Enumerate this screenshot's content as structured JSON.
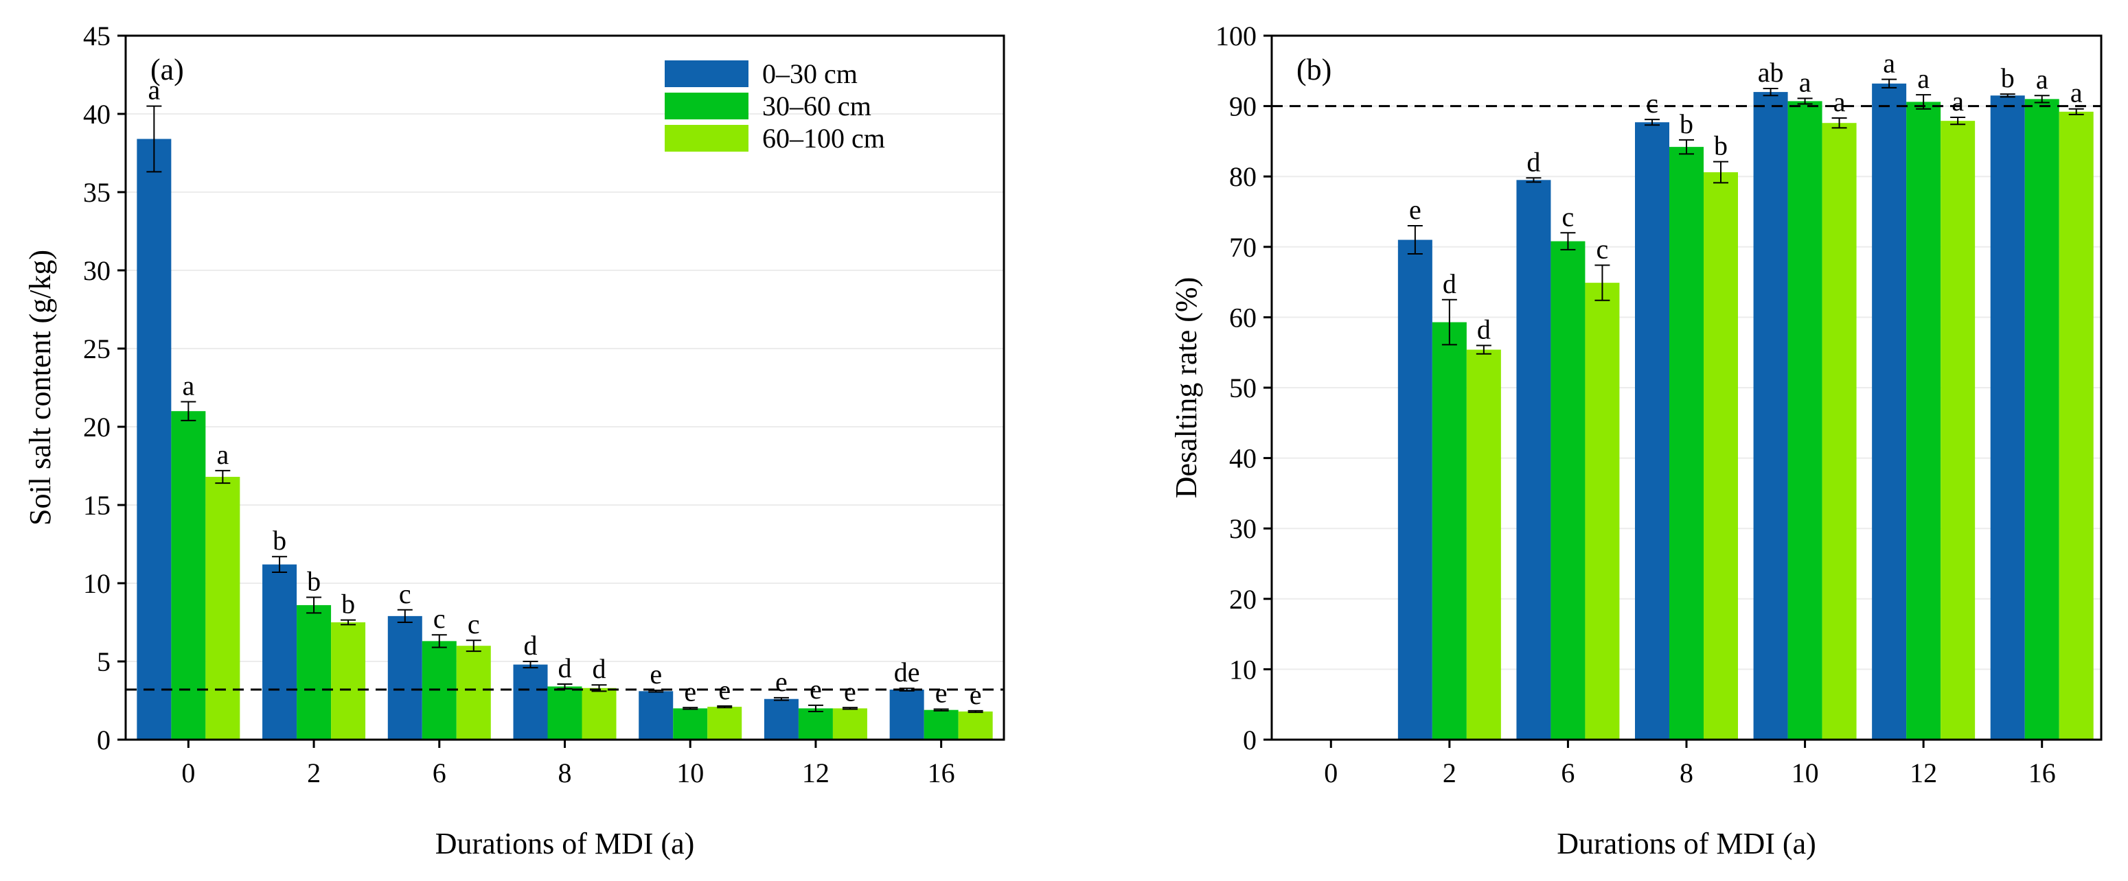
{
  "chart_data": [
    {
      "type": "bar",
      "panel_label": "(a)",
      "title": "",
      "xlabel": "Durations of MDI (a)",
      "ylabel": "Soil salt content (g/kg)",
      "ylim": [
        0,
        45
      ],
      "yticks": [
        0,
        5,
        10,
        15,
        20,
        25,
        30,
        35,
        40,
        45
      ],
      "grid": true,
      "legend_position": "top-right",
      "reference_line": 3.2,
      "categories": [
        "0",
        "2",
        "6",
        "8",
        "10",
        "12",
        "16"
      ],
      "series": [
        {
          "name": "0–30 cm",
          "color": "#0f62ad",
          "values": [
            38.4,
            11.2,
            7.9,
            4.8,
            3.1,
            2.6,
            3.2
          ],
          "errors": [
            2.1,
            0.5,
            0.4,
            0.2,
            0.05,
            0.08,
            0.08
          ],
          "letters": [
            "a",
            "b",
            "c",
            "d",
            "e",
            "e",
            "de"
          ]
        },
        {
          "name": "30–60 cm",
          "color": "#00c21c",
          "values": [
            21.0,
            8.6,
            6.3,
            3.4,
            2.0,
            2.0,
            1.9
          ],
          "errors": [
            0.6,
            0.5,
            0.4,
            0.15,
            0.05,
            0.2,
            0.05
          ],
          "letters": [
            "a",
            "b",
            "c",
            "d",
            "e",
            "e",
            "e"
          ]
        },
        {
          "name": "60–100 cm",
          "color": "#8ee800",
          "values": [
            16.8,
            7.5,
            6.0,
            3.3,
            2.1,
            2.0,
            1.8
          ],
          "errors": [
            0.4,
            0.15,
            0.35,
            0.2,
            0.05,
            0.05,
            0.05
          ],
          "letters": [
            "a",
            "b",
            "c",
            "d",
            "e",
            "e",
            "e"
          ]
        }
      ]
    },
    {
      "type": "bar",
      "panel_label": "(b)",
      "title": "",
      "xlabel": "Durations of MDI (a)",
      "ylabel": "Desalting rate (%)",
      "ylim": [
        0,
        100
      ],
      "yticks": [
        0,
        10,
        20,
        30,
        40,
        50,
        60,
        70,
        80,
        90,
        100
      ],
      "grid": true,
      "reference_line": 90,
      "categories": [
        "0",
        "2",
        "6",
        "8",
        "10",
        "12",
        "16"
      ],
      "series": [
        {
          "name": "0–30 cm",
          "color": "#0f62ad",
          "values": [
            null,
            71.0,
            79.5,
            87.7,
            92.0,
            93.2,
            91.5
          ],
          "errors": [
            null,
            2.0,
            0.3,
            0.4,
            0.5,
            0.6,
            0.2
          ],
          "letters": [
            "",
            "e",
            "d",
            "c",
            "ab",
            "a",
            "b"
          ]
        },
        {
          "name": "30–60 cm",
          "color": "#00c21c",
          "values": [
            null,
            59.3,
            70.8,
            84.2,
            90.7,
            90.6,
            91.0
          ],
          "errors": [
            null,
            3.2,
            1.2,
            1.0,
            0.4,
            1.0,
            0.5
          ],
          "letters": [
            "",
            "d",
            "c",
            "b",
            "a",
            "a",
            "a"
          ]
        },
        {
          "name": "60–100 cm",
          "color": "#8ee800",
          "values": [
            null,
            55.4,
            64.9,
            80.6,
            87.6,
            87.9,
            89.2
          ],
          "errors": [
            null,
            0.6,
            2.5,
            1.5,
            0.7,
            0.5,
            0.4
          ],
          "letters": [
            "",
            "d",
            "c",
            "b",
            "a",
            "a",
            "a"
          ]
        }
      ]
    }
  ]
}
